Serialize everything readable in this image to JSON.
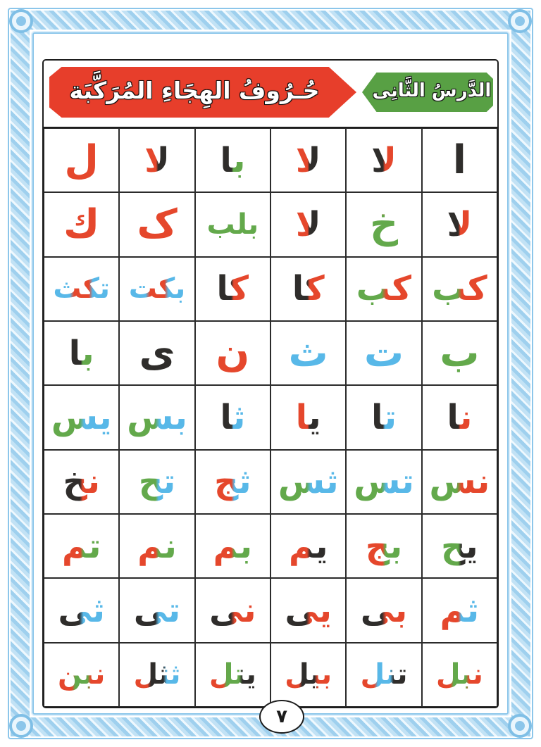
{
  "page": {
    "number_arabic": "٧"
  },
  "colors": {
    "red": "#e5472c",
    "green": "#63a94b",
    "blue": "#58b8e8",
    "black": "#2f2d2b"
  },
  "border": {
    "line_color": "#8cc6ea",
    "pattern_light": "#eef8fe",
    "pattern_dark": "#9fd0ee"
  },
  "header": {
    "title_banner": {
      "text": "حُـرُوفُ الهِجَاءِ المُرَكَّبَة",
      "bg": "#e73e2b",
      "text_color": "#ffffff"
    },
    "lesson_banner": {
      "text": "الدَّرسُ الثَّانِى",
      "bg": "#58a044",
      "text_color": "#ffffff"
    }
  },
  "grid": {
    "direction": "rtl",
    "rows": [
      [
        {
          "text": "ا",
          "colors": [
            "black"
          ]
        },
        {
          "text": "لا",
          "colors": [
            "red",
            "black"
          ]
        },
        {
          "text": "لا",
          "colors": [
            "black",
            "red"
          ]
        },
        {
          "text": "با",
          "colors": [
            "green",
            "black"
          ]
        },
        {
          "text": "لا",
          "colors": [
            "black",
            "red"
          ]
        },
        {
          "text": "ل",
          "colors": [
            "red"
          ]
        }
      ],
      [
        {
          "text": "لا",
          "colors": [
            "red",
            "black"
          ]
        },
        {
          "text": "خ",
          "colors": [
            "red",
            "green"
          ],
          "dir": "down"
        },
        {
          "text": "لا",
          "colors": [
            "black",
            "red"
          ]
        },
        {
          "text": "بلب",
          "colors": [
            "green"
          ]
        },
        {
          "text": "ک",
          "colors": [
            "red"
          ]
        },
        {
          "text": "ك",
          "colors": [
            "red"
          ]
        }
      ],
      [
        {
          "text": "كب",
          "colors": [
            "red",
            "green"
          ]
        },
        {
          "text": "كب",
          "colors": [
            "red",
            "green"
          ]
        },
        {
          "text": "كا",
          "colors": [
            "red",
            "black"
          ]
        },
        {
          "text": "كا",
          "colors": [
            "red",
            "black"
          ]
        },
        {
          "text": "بكت",
          "colors": [
            "blue",
            "red",
            "blue"
          ]
        },
        {
          "text": "تكث",
          "colors": [
            "blue",
            "red",
            "blue"
          ]
        }
      ],
      [
        {
          "text": "ب",
          "colors": [
            "green"
          ]
        },
        {
          "text": "ت",
          "colors": [
            "blue"
          ]
        },
        {
          "text": "ث",
          "colors": [
            "blue"
          ]
        },
        {
          "text": "ن",
          "colors": [
            "red"
          ]
        },
        {
          "text": "ى",
          "colors": [
            "black"
          ]
        },
        {
          "text": "با",
          "colors": [
            "green",
            "black"
          ]
        }
      ],
      [
        {
          "text": "نا",
          "colors": [
            "red",
            "black"
          ]
        },
        {
          "text": "تا",
          "colors": [
            "blue",
            "black"
          ]
        },
        {
          "text": "يا",
          "colors": [
            "black",
            "red"
          ]
        },
        {
          "text": "ثا",
          "colors": [
            "blue",
            "black"
          ]
        },
        {
          "text": "بس",
          "colors": [
            "blue",
            "green"
          ]
        },
        {
          "text": "يس",
          "colors": [
            "blue",
            "green"
          ]
        }
      ],
      [
        {
          "text": "نس",
          "colors": [
            "red",
            "green"
          ]
        },
        {
          "text": "تس",
          "colors": [
            "blue",
            "green"
          ]
        },
        {
          "text": "ثس",
          "colors": [
            "blue",
            "green"
          ]
        },
        {
          "text": "ثج",
          "colors": [
            "blue",
            "red"
          ]
        },
        {
          "text": "تح",
          "colors": [
            "blue",
            "green"
          ]
        },
        {
          "text": "نخ",
          "colors": [
            "red",
            "black"
          ]
        }
      ],
      [
        {
          "text": "يح",
          "colors": [
            "black",
            "green"
          ]
        },
        {
          "text": "بج",
          "colors": [
            "green",
            "red"
          ]
        },
        {
          "text": "يم",
          "colors": [
            "black",
            "red"
          ]
        },
        {
          "text": "بم",
          "colors": [
            "green",
            "red"
          ]
        },
        {
          "text": "نم",
          "colors": [
            "green",
            "red"
          ]
        },
        {
          "text": "تم",
          "colors": [
            "green",
            "red"
          ]
        }
      ],
      [
        {
          "text": "ثم",
          "colors": [
            "blue",
            "red"
          ]
        },
        {
          "text": "بى",
          "colors": [
            "red",
            "black"
          ]
        },
        {
          "text": "يى",
          "colors": [
            "red",
            "black"
          ]
        },
        {
          "text": "نى",
          "colors": [
            "red",
            "black"
          ]
        },
        {
          "text": "تى",
          "colors": [
            "blue",
            "black"
          ]
        },
        {
          "text": "ثى",
          "colors": [
            "blue",
            "black"
          ]
        }
      ],
      [
        {
          "text": "نبل",
          "colors": [
            "red",
            "green",
            "red"
          ]
        },
        {
          "text": "تنل",
          "colors": [
            "black",
            "blue",
            "red"
          ]
        },
        {
          "text": "بيل",
          "colors": [
            "red",
            "black",
            "red"
          ]
        },
        {
          "text": "يتل",
          "colors": [
            "black",
            "green",
            "red"
          ]
        },
        {
          "text": "ثثل",
          "colors": [
            "blue",
            "black",
            "red"
          ]
        },
        {
          "text": "نبن",
          "colors": [
            "red",
            "green",
            "red"
          ]
        }
      ]
    ]
  }
}
